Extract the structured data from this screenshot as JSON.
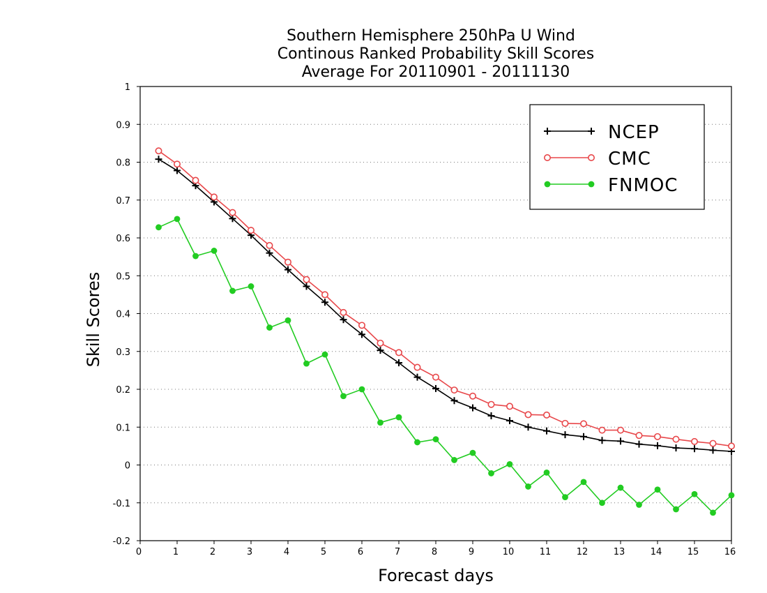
{
  "chart_data": {
    "type": "line",
    "title_lines": [
      "Southern Hemisphere 250hPa U Wind",
      "Continous Ranked Probability Skill Scores",
      "Average For 20110901 - 20111130"
    ],
    "xlabel": "Forecast days",
    "ylabel": "Skill Scores",
    "xlim": [
      0,
      16
    ],
    "ylim": [
      -0.2,
      1
    ],
    "xticks": [
      0,
      1,
      2,
      3,
      4,
      5,
      6,
      7,
      8,
      9,
      10,
      11,
      12,
      13,
      14,
      15,
      16
    ],
    "yticks": [
      -0.2,
      -0.1,
      0,
      0.1,
      0.2,
      0.3,
      0.4,
      0.5,
      0.6,
      0.7,
      0.8,
      0.9,
      1
    ],
    "ytick_labels": [
      "-0.2",
      "-0.1",
      "0",
      "0.1",
      "0.2",
      "0.3",
      "0.4",
      "0.5",
      "0.6",
      "0.7",
      "0.8",
      "0.9",
      "1"
    ],
    "grid": "horizontal dotted",
    "legend_position": "top-right",
    "x": [
      0.5,
      1,
      1.5,
      2,
      2.5,
      3,
      3.5,
      4,
      4.5,
      5,
      5.5,
      6,
      6.5,
      7,
      7.5,
      8,
      8.5,
      9,
      9.5,
      10,
      10.5,
      11,
      11.5,
      12,
      12.5,
      13,
      13.5,
      14,
      14.5,
      15,
      15.5,
      16
    ],
    "series": [
      {
        "name": "NCEP",
        "color": "#000000",
        "marker": "plus",
        "values": [
          0.808,
          0.778,
          0.738,
          0.695,
          0.651,
          0.607,
          0.56,
          0.516,
          0.472,
          0.43,
          0.384,
          0.345,
          0.303,
          0.27,
          0.232,
          0.202,
          0.17,
          0.151,
          0.13,
          0.117,
          0.1,
          0.09,
          0.08,
          0.075,
          0.065,
          0.063,
          0.055,
          0.051,
          0.045,
          0.043,
          0.039,
          0.036
        ]
      },
      {
        "name": "CMC",
        "color": "#e8474a",
        "marker": "open-circle",
        "values": [
          0.83,
          0.795,
          0.752,
          0.708,
          0.667,
          0.62,
          0.58,
          0.536,
          0.49,
          0.45,
          0.403,
          0.369,
          0.322,
          0.297,
          0.258,
          0.232,
          0.198,
          0.182,
          0.16,
          0.155,
          0.133,
          0.132,
          0.11,
          0.109,
          0.092,
          0.092,
          0.078,
          0.075,
          0.068,
          0.062,
          0.057,
          0.05
        ]
      },
      {
        "name": "FNMOC",
        "color": "#22cc22",
        "marker": "filled-circle",
        "values": [
          0.628,
          0.65,
          0.552,
          0.566,
          0.46,
          0.472,
          0.363,
          0.382,
          0.268,
          0.292,
          0.182,
          0.2,
          0.112,
          0.126,
          0.06,
          0.068,
          0.013,
          0.032,
          -0.022,
          0.002,
          -0.057,
          -0.02,
          -0.085,
          -0.045,
          -0.1,
          -0.06,
          -0.105,
          -0.065,
          -0.117,
          -0.077,
          -0.126,
          -0.08
        ]
      }
    ]
  }
}
